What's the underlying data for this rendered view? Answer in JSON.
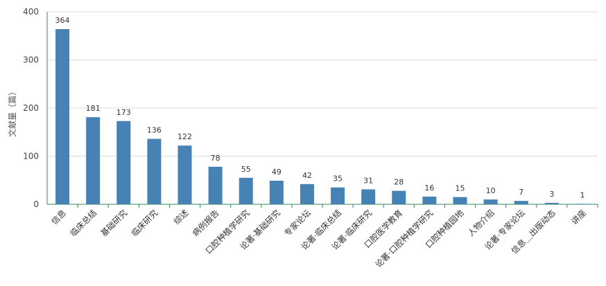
{
  "chart_data": {
    "type": "bar",
    "ylabel": "文献量（篇）",
    "ylim": [
      0,
      400
    ],
    "yticks": [
      0,
      100,
      200,
      300,
      400
    ],
    "grid": true,
    "bar_color": "#4682b4",
    "categories": [
      "信息",
      "临床总结",
      "基础研究",
      "临床研究",
      "综述",
      "病例报告",
      "口腔种植学研究",
      "论著·基础研究",
      "专家论坛",
      "论著·临床总结",
      "论著·临床研究",
      "口腔医学教育",
      "论著·口腔种植学研究",
      "口腔种植园地",
      "人物介绍",
      "论著·专家论坛",
      "信息＿出版动态",
      "讲座"
    ],
    "values": [
      364,
      181,
      173,
      136,
      122,
      78,
      55,
      49,
      42,
      35,
      31,
      28,
      16,
      15,
      10,
      7,
      3,
      1
    ]
  }
}
